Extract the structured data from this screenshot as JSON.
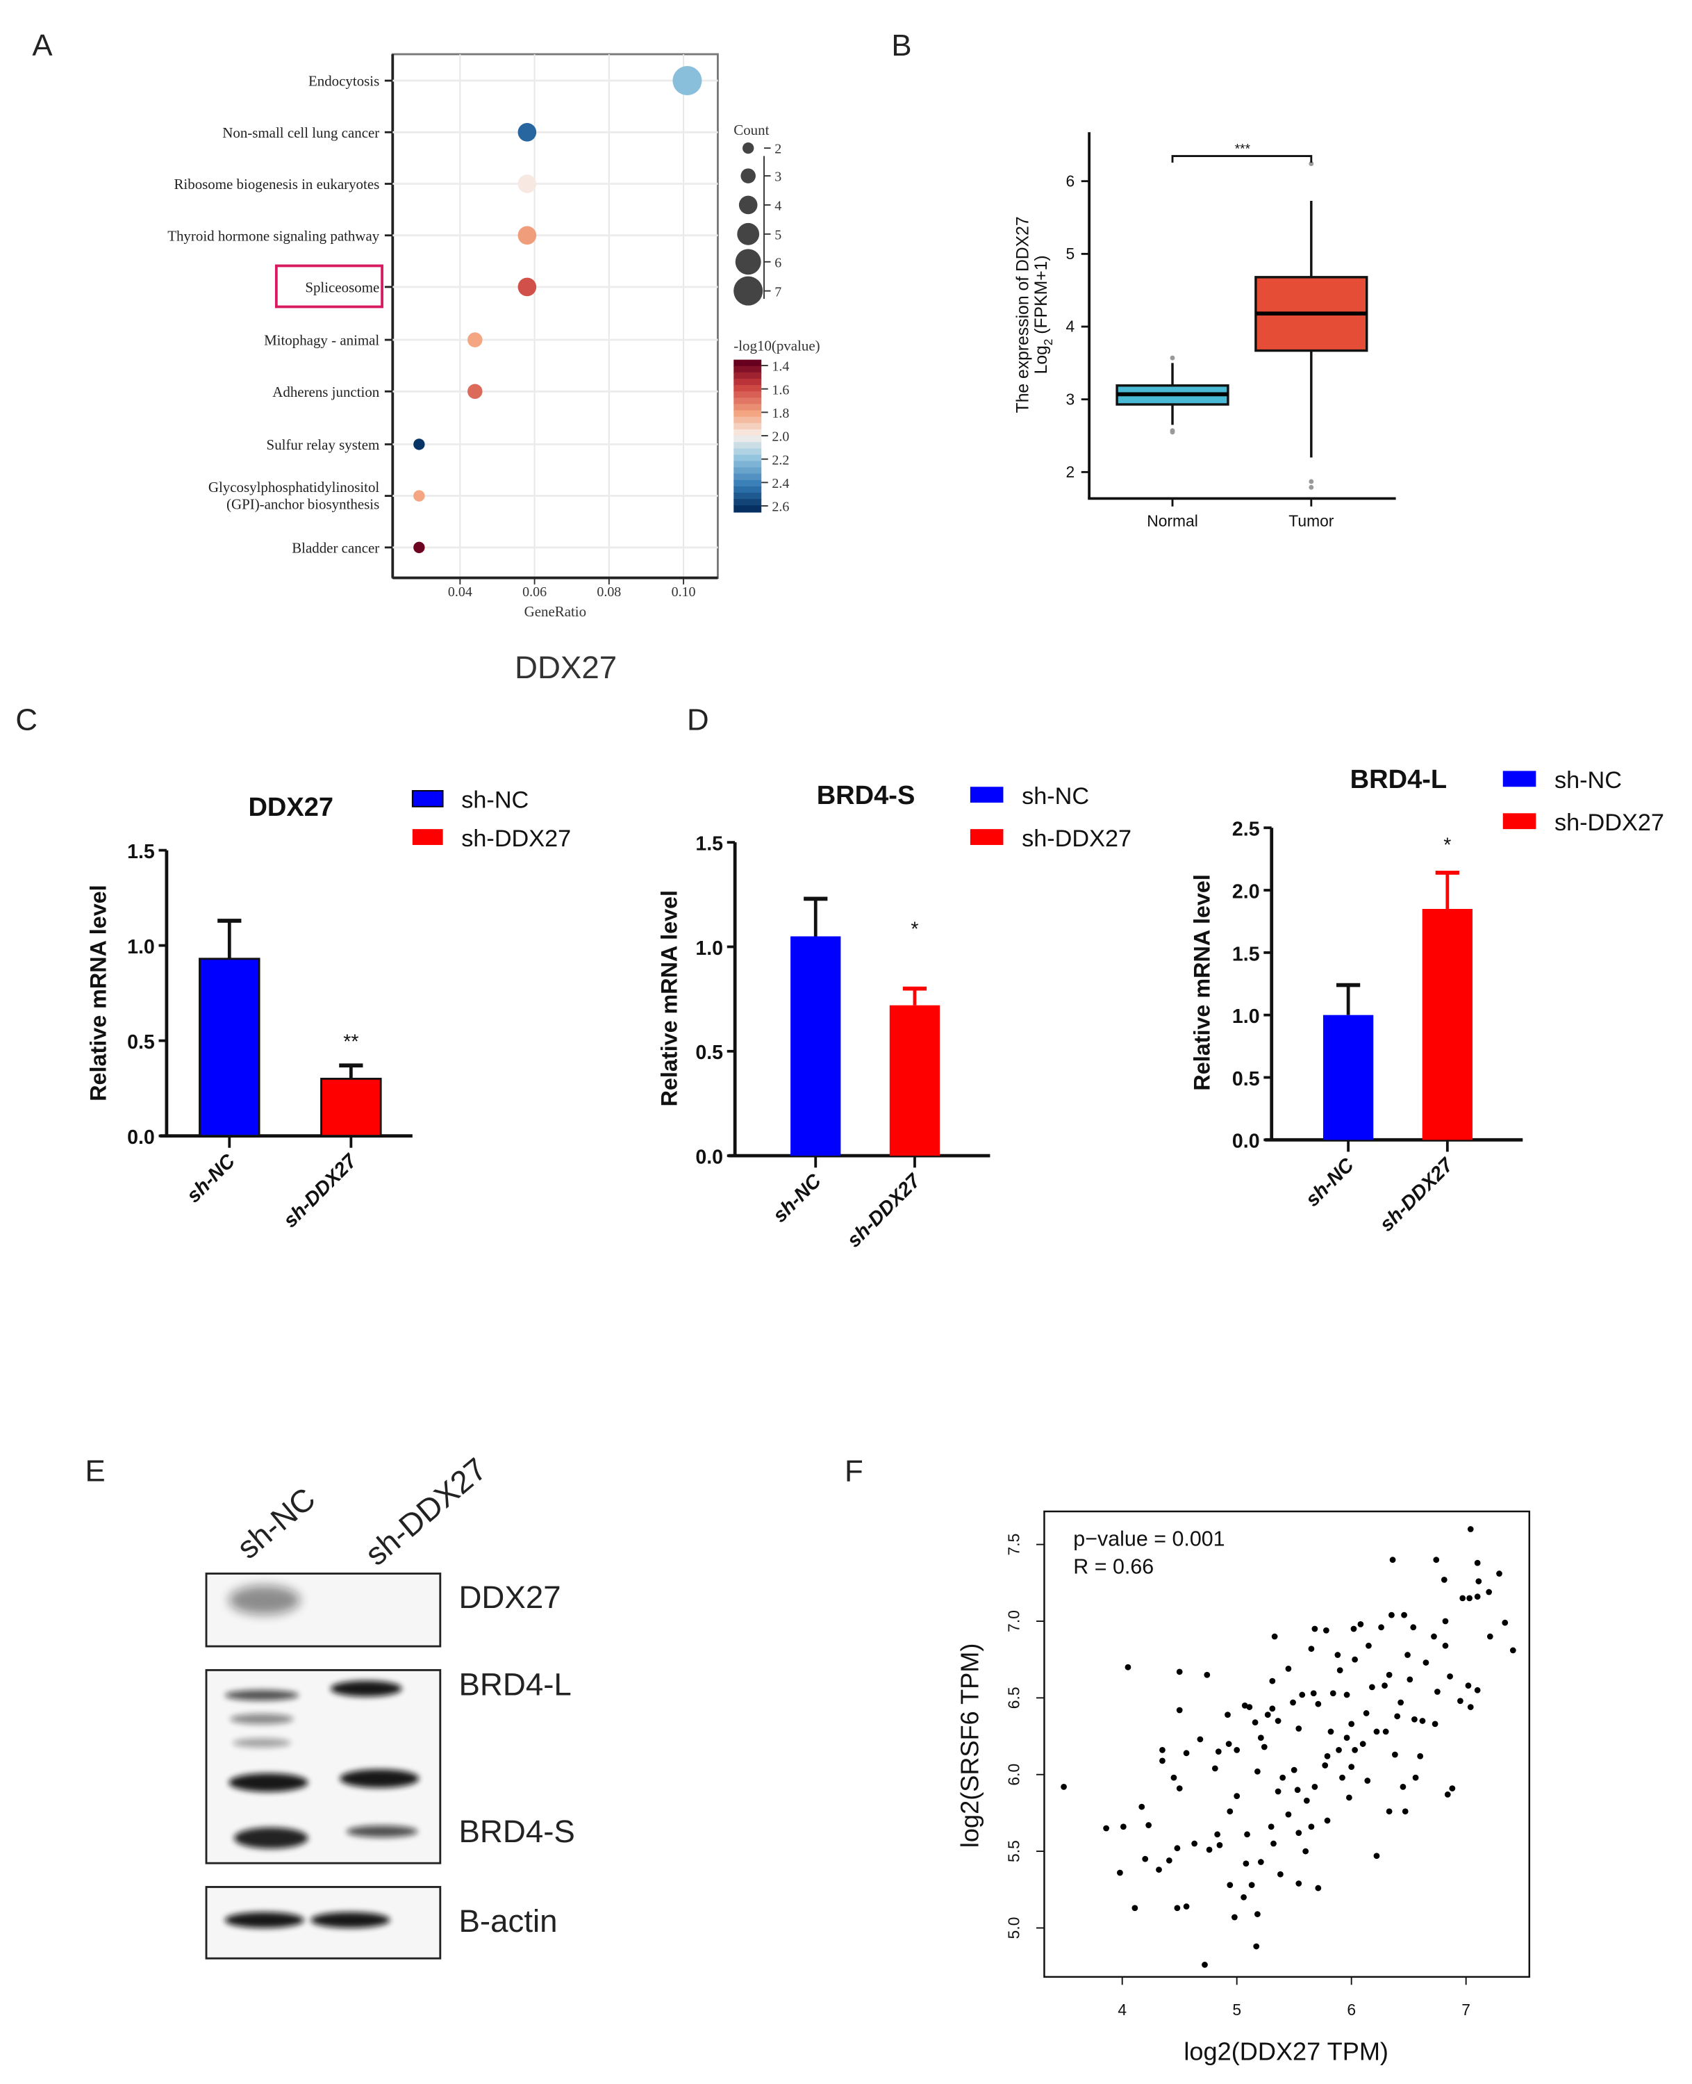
{
  "panel_labels": {
    "A": "A",
    "B": "B",
    "C": "C",
    "D": "D",
    "E": "E",
    "F": "F"
  },
  "chart_data": [
    {
      "id": "A",
      "type": "scatter",
      "subtype": "bubble",
      "caption": "DDX27",
      "xlabel": "GeneRatio",
      "xticks": [
        "0.04",
        "0.06",
        "0.08",
        "0.10"
      ],
      "xlim": [
        0.0219,
        0.1092
      ],
      "highlighted": "Spliceosome",
      "highlight_color": "#d81b60",
      "size_legend": {
        "title": "Count",
        "values": [
          2,
          3,
          4,
          5,
          6,
          7
        ]
      },
      "color_legend": {
        "title": "-log10(pvalue)",
        "ticks": [
          "1.4",
          "1.6",
          "1.8",
          "2.0",
          "2.2",
          "2.4",
          "2.6"
        ],
        "range": [
          1.35,
          2.65
        ]
      },
      "terms": [
        {
          "label": "Endocytosis",
          "gene_ratio": 0.101,
          "count": 7,
          "neglog10p": 2.22
        },
        {
          "label": "Non-small cell lung cancer",
          "gene_ratio": 0.058,
          "count": 4,
          "neglog10p": 2.5
        },
        {
          "label": "Ribosome biogenesis in eukaryotes",
          "gene_ratio": 0.058,
          "count": 4,
          "neglog10p": 1.98
        },
        {
          "label": "Thyroid hormone signaling pathway",
          "gene_ratio": 0.058,
          "count": 4,
          "neglog10p": 1.78
        },
        {
          "label": "Spliceosome",
          "gene_ratio": 0.058,
          "count": 4,
          "neglog10p": 1.6
        },
        {
          "label": "Mitophagy - animal",
          "gene_ratio": 0.044,
          "count": 3,
          "neglog10p": 1.8
        },
        {
          "label": "Adherens junction",
          "gene_ratio": 0.044,
          "count": 3,
          "neglog10p": 1.66
        },
        {
          "label": "Sulfur relay system",
          "gene_ratio": 0.029,
          "count": 2,
          "neglog10p": 2.64
        },
        {
          "label": "Glycosylphosphatidylinositol",
          "label2": "(GPI)-anchor biosynthesis",
          "gene_ratio": 0.029,
          "count": 2,
          "neglog10p": 1.8
        },
        {
          "label": "Bladder cancer",
          "gene_ratio": 0.029,
          "count": 2,
          "neglog10p": 1.36
        }
      ]
    },
    {
      "id": "B",
      "type": "box",
      "ylabel": "The expression of DDX27",
      "ylabel2_pre": "Log",
      "ylabel2_sub": "2",
      "ylabel2_post": " (FPKM+1)",
      "yticks": [
        "2",
        "3",
        "4",
        "5",
        "6"
      ],
      "ylim": [
        1.65,
        6.65
      ],
      "significance": "***",
      "groups": [
        {
          "name": "Normal",
          "color": "#4ab9d6",
          "q1": 2.93,
          "median": 3.07,
          "q3": 3.19,
          "whisker_low": 2.65,
          "whisker_high": 3.5,
          "outliers": [
            3.57,
            2.57,
            2.55
          ]
        },
        {
          "name": "Tumor",
          "color": "#e54d37",
          "q1": 3.67,
          "median": 4.18,
          "q3": 4.68,
          "whisker_low": 2.2,
          "whisker_high": 5.73,
          "outliers": [
            6.24,
            1.87,
            1.79
          ]
        }
      ]
    },
    {
      "id": "C",
      "type": "bar",
      "title": "DDX27",
      "ylabel": "Relative mRNA level",
      "categories": [
        "sh-NC",
        "sh-DDX27"
      ],
      "values": [
        0.93,
        0.3
      ],
      "errors": [
        0.2,
        0.07
      ],
      "colors": [
        "#0000ff",
        "#ff0000"
      ],
      "significance": [
        "",
        "**"
      ],
      "yticks": [
        "0.0",
        "0.5",
        "1.0",
        "1.5"
      ],
      "ylim": [
        0,
        1.5
      ],
      "legend": [
        "sh-NC",
        "sh-DDX27"
      ]
    },
    {
      "id": "D1",
      "type": "bar",
      "title": "BRD4-S",
      "ylabel": "Relative mRNA level",
      "categories": [
        "sh-NC",
        "sh-DDX27"
      ],
      "values": [
        1.05,
        0.72
      ],
      "errors": [
        0.18,
        0.08
      ],
      "colors": [
        "#0000ff",
        "#ff0000"
      ],
      "significance": [
        "",
        "*"
      ],
      "yticks": [
        "0.0",
        "0.5",
        "1.0",
        "1.5"
      ],
      "ylim": [
        0,
        1.5
      ],
      "legend": [
        "sh-NC",
        "sh-DDX27"
      ]
    },
    {
      "id": "D2",
      "type": "bar",
      "title": "BRD4-L",
      "ylabel": "Relative mRNA level",
      "categories": [
        "sh-NC",
        "sh-DDX27"
      ],
      "values": [
        1.0,
        1.85
      ],
      "errors": [
        0.24,
        0.29
      ],
      "colors": [
        "#0000ff",
        "#ff0000"
      ],
      "significance": [
        "",
        "*"
      ],
      "yticks": [
        "0.0",
        "0.5",
        "1.0",
        "1.5",
        "2.0",
        "2.5"
      ],
      "ylim": [
        0,
        2.5
      ],
      "legend": [
        "sh-NC",
        "sh-DDX27"
      ]
    },
    {
      "id": "F",
      "type": "scatter",
      "xlabel": "log2(DDX27 TPM)",
      "ylabel": "log2(SRSF6 TPM)",
      "annotation": [
        "p−value = 0.001",
        "R = 0.66"
      ],
      "xticks": [
        "4",
        "5",
        "6",
        "7"
      ],
      "yticks": [
        "5.0",
        "5.5",
        "6.0",
        "6.5",
        "7.0",
        "7.5"
      ],
      "xlim": [
        3.32,
        7.55
      ],
      "ylim": [
        4.66,
        7.79
      ],
      "points": [
        [
          3.49,
          5.92
        ],
        [
          4.05,
          6.7
        ],
        [
          4.5,
          6.67
        ],
        [
          4.74,
          6.65
        ],
        [
          4.5,
          6.42
        ],
        [
          4.35,
          6.16
        ],
        [
          4.35,
          6.09
        ],
        [
          4.56,
          6.14
        ],
        [
          3.86,
          5.65
        ],
        [
          4.01,
          5.66
        ],
        [
          3.98,
          5.36
        ],
        [
          4.11,
          5.13
        ],
        [
          4.17,
          5.79
        ],
        [
          4.23,
          5.67
        ],
        [
          4.2,
          5.45
        ],
        [
          4.32,
          5.38
        ],
        [
          4.41,
          5.44
        ],
        [
          4.45,
          5.98
        ],
        [
          4.5,
          5.91
        ],
        [
          4.48,
          5.52
        ],
        [
          4.48,
          5.13
        ],
        [
          4.56,
          5.14
        ],
        [
          4.63,
          5.55
        ],
        [
          4.68,
          6.23
        ],
        [
          4.72,
          4.76
        ],
        [
          4.76,
          5.51
        ],
        [
          4.81,
          6.04
        ],
        [
          4.83,
          5.61
        ],
        [
          4.84,
          6.15
        ],
        [
          4.85,
          5.54
        ],
        [
          4.92,
          6.39
        ],
        [
          4.93,
          6.2
        ],
        [
          4.94,
          5.76
        ],
        [
          4.94,
          5.28
        ],
        [
          4.98,
          5.07
        ],
        [
          5.0,
          6.16
        ],
        [
          5.0,
          5.86
        ],
        [
          5.06,
          5.2
        ],
        [
          5.07,
          6.45
        ],
        [
          5.08,
          5.42
        ],
        [
          5.11,
          6.44
        ],
        [
          5.13,
          5.28
        ],
        [
          5.16,
          6.34
        ],
        [
          5.17,
          4.88
        ],
        [
          5.18,
          5.09
        ],
        [
          5.21,
          6.24
        ],
        [
          5.21,
          5.43
        ],
        [
          5.27,
          6.39
        ],
        [
          5.31,
          6.43
        ],
        [
          5.33,
          6.9
        ],
        [
          5.32,
          5.55
        ],
        [
          5.31,
          6.61
        ],
        [
          5.36,
          5.89
        ],
        [
          5.38,
          5.35
        ],
        [
          5.36,
          6.35
        ],
        [
          5.45,
          6.69
        ],
        [
          5.49,
          6.47
        ],
        [
          5.5,
          6.03
        ],
        [
          5.53,
          5.9
        ],
        [
          5.54,
          5.62
        ],
        [
          5.54,
          5.29
        ],
        [
          5.57,
          6.52
        ],
        [
          5.6,
          5.5
        ],
        [
          5.65,
          6.82
        ],
        [
          5.67,
          6.53
        ],
        [
          5.68,
          6.95
        ],
        [
          5.71,
          5.26
        ],
        [
          5.71,
          6.46
        ],
        [
          5.78,
          6.94
        ],
        [
          5.79,
          5.7
        ],
        [
          5.79,
          6.12
        ],
        [
          5.84,
          6.53
        ],
        [
          5.88,
          6.78
        ],
        [
          5.9,
          6.68
        ],
        [
          5.92,
          5.98
        ],
        [
          5.96,
          6.52
        ],
        [
          5.98,
          5.85
        ],
        [
          6.0,
          6.05
        ],
        [
          6.02,
          6.95
        ],
        [
          6.03,
          6.75
        ],
        [
          6.08,
          6.98
        ],
        [
          6.1,
          6.2
        ],
        [
          6.13,
          6.4
        ],
        [
          6.15,
          6.84
        ],
        [
          6.14,
          5.96
        ],
        [
          6.18,
          6.57
        ],
        [
          6.22,
          5.47
        ],
        [
          6.22,
          6.28
        ],
        [
          6.26,
          6.96
        ],
        [
          6.29,
          6.58
        ],
        [
          6.33,
          5.76
        ],
        [
          6.35,
          7.04
        ],
        [
          6.36,
          7.4
        ],
        [
          6.33,
          6.65
        ],
        [
          6.38,
          6.13
        ],
        [
          6.43,
          6.47
        ],
        [
          6.45,
          5.92
        ],
        [
          6.46,
          7.04
        ],
        [
          6.47,
          5.76
        ],
        [
          6.49,
          6.78
        ],
        [
          6.54,
          6.96
        ],
        [
          6.55,
          6.36
        ],
        [
          6.56,
          5.98
        ],
        [
          6.6,
          6.12
        ],
        [
          6.65,
          6.73
        ],
        [
          6.72,
          6.9
        ],
        [
          6.73,
          6.33
        ],
        [
          6.74,
          7.4
        ],
        [
          6.81,
          7.27
        ],
        [
          6.82,
          7.0
        ],
        [
          6.82,
          6.84
        ],
        [
          6.86,
          6.64
        ],
        [
          6.84,
          5.87
        ],
        [
          6.88,
          5.91
        ],
        [
          6.95,
          6.48
        ],
        [
          6.97,
          7.15
        ],
        [
          7.03,
          7.15
        ],
        [
          7.02,
          6.58
        ],
        [
          7.04,
          6.44
        ],
        [
          7.04,
          7.6
        ],
        [
          7.1,
          7.16
        ],
        [
          7.11,
          7.26
        ],
        [
          7.1,
          7.38
        ],
        [
          7.1,
          6.55
        ],
        [
          7.2,
          7.19
        ],
        [
          7.21,
          6.9
        ],
        [
          7.29,
          7.31
        ],
        [
          7.34,
          6.99
        ],
        [
          7.41,
          6.81
        ],
        [
          5.82,
          6.28
        ],
        [
          5.89,
          6.16
        ],
        [
          5.96,
          6.24
        ],
        [
          5.68,
          5.92
        ],
        [
          5.61,
          5.83
        ],
        [
          5.4,
          5.98
        ],
        [
          5.24,
          6.18
        ],
        [
          5.18,
          6.02
        ],
        [
          6.03,
          6.16
        ],
        [
          6.3,
          6.28
        ],
        [
          6.4,
          6.38
        ],
        [
          6.62,
          6.35
        ],
        [
          6.51,
          6.62
        ],
        [
          6.75,
          6.54
        ],
        [
          5.54,
          6.3
        ],
        [
          5.77,
          6.06
        ],
        [
          6.0,
          6.33
        ],
        [
          5.65,
          5.66
        ],
        [
          5.45,
          5.74
        ],
        [
          5.09,
          5.61
        ],
        [
          5.3,
          5.66
        ]
      ]
    }
  ],
  "western_blot": {
    "lanes": [
      "sh-NC",
      "sh-DDX27"
    ],
    "bands": [
      "DDX27",
      "BRD4-L",
      "BRD4-S",
      "B-actin"
    ]
  }
}
